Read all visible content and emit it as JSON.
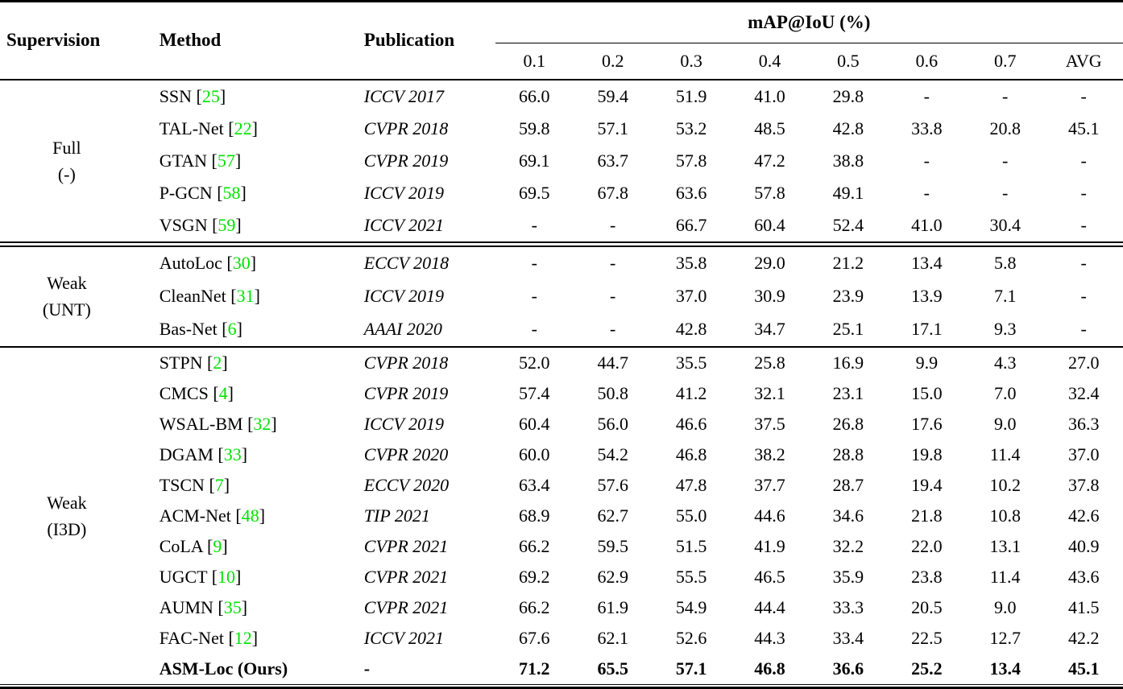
{
  "page": {
    "background": "#ffffff",
    "text_color": "#000000",
    "citation_color": "#00e000"
  },
  "table": {
    "headers": {
      "supervision": "Supervision",
      "method": "Method",
      "publication": "Publication",
      "map_group": "mAP@IoU (%)",
      "iou_cols": [
        "0.1",
        "0.2",
        "0.3",
        "0.4",
        "0.5",
        "0.6",
        "0.7",
        "AVG"
      ]
    },
    "groups": [
      {
        "supervision_lines": [
          "Full",
          "(-)"
        ],
        "separator_after": "double",
        "rows": [
          {
            "method": "SSN",
            "cite": "25",
            "publication": "ICCV 2017",
            "values": [
              "66.0",
              "59.4",
              "51.9",
              "41.0",
              "29.8",
              "-",
              "-",
              "-"
            ],
            "bold": false
          },
          {
            "method": "TAL-Net",
            "cite": "22",
            "publication": "CVPR 2018",
            "values": [
              "59.8",
              "57.1",
              "53.2",
              "48.5",
              "42.8",
              "33.8",
              "20.8",
              "45.1"
            ],
            "bold": false
          },
          {
            "method": "GTAN",
            "cite": "57",
            "publication": "CVPR 2019",
            "values": [
              "69.1",
              "63.7",
              "57.8",
              "47.2",
              "38.8",
              "-",
              "-",
              "-"
            ],
            "bold": false
          },
          {
            "method": "P-GCN",
            "cite": "58",
            "publication": "ICCV 2019",
            "values": [
              "69.5",
              "67.8",
              "63.6",
              "57.8",
              "49.1",
              "-",
              "-",
              "-"
            ],
            "bold": false
          },
          {
            "method": "VSGN",
            "cite": "59",
            "publication": "ICCV 2021",
            "values": [
              "-",
              "-",
              "66.7",
              "60.4",
              "52.4",
              "41.0",
              "30.4",
              "-"
            ],
            "bold": false
          }
        ]
      },
      {
        "supervision_lines": [
          "Weak",
          "(UNT)"
        ],
        "separator_after": "single",
        "rows": [
          {
            "method": "AutoLoc",
            "cite": "30",
            "publication": "ECCV 2018",
            "values": [
              "-",
              "-",
              "35.8",
              "29.0",
              "21.2",
              "13.4",
              "5.8",
              "-"
            ],
            "bold": false
          },
          {
            "method": "CleanNet",
            "cite": "31",
            "publication": "ICCV 2019",
            "values": [
              "-",
              "-",
              "37.0",
              "30.9",
              "23.9",
              "13.9",
              "7.1",
              "-"
            ],
            "bold": false
          },
          {
            "method": "Bas-Net",
            "cite": "6",
            "publication": "AAAI 2020",
            "values": [
              "-",
              "-",
              "42.8",
              "34.7",
              "25.1",
              "17.1",
              "9.3",
              "-"
            ],
            "bold": false
          }
        ]
      },
      {
        "supervision_lines": [
          "Weak",
          "(I3D)"
        ],
        "separator_after": null,
        "rows": [
          {
            "method": "STPN",
            "cite": "2",
            "publication": "CVPR 2018",
            "values": [
              "52.0",
              "44.7",
              "35.5",
              "25.8",
              "16.9",
              "9.9",
              "4.3",
              "27.0"
            ],
            "bold": false
          },
          {
            "method": "CMCS",
            "cite": "4",
            "publication": "CVPR 2019",
            "values": [
              "57.4",
              "50.8",
              "41.2",
              "32.1",
              "23.1",
              "15.0",
              "7.0",
              "32.4"
            ],
            "bold": false
          },
          {
            "method": "WSAL-BM",
            "cite": "32",
            "publication": "ICCV 2019",
            "values": [
              "60.4",
              "56.0",
              "46.6",
              "37.5",
              "26.8",
              "17.6",
              "9.0",
              "36.3"
            ],
            "bold": false
          },
          {
            "method": "DGAM",
            "cite": "33",
            "publication": "CVPR 2020",
            "values": [
              "60.0",
              "54.2",
              "46.8",
              "38.2",
              "28.8",
              "19.8",
              "11.4",
              "37.0"
            ],
            "bold": false
          },
          {
            "method": "TSCN",
            "cite": "7",
            "publication": "ECCV 2020",
            "values": [
              "63.4",
              "57.6",
              "47.8",
              "37.7",
              "28.7",
              "19.4",
              "10.2",
              "37.8"
            ],
            "bold": false
          },
          {
            "method": "ACM-Net",
            "cite": "48",
            "publication": "TIP 2021",
            "values": [
              "68.9",
              "62.7",
              "55.0",
              "44.6",
              "34.6",
              "21.8",
              "10.8",
              "42.6"
            ],
            "bold": false
          },
          {
            "method": "CoLA",
            "cite": "9",
            "publication": "CVPR 2021",
            "values": [
              "66.2",
              "59.5",
              "51.5",
              "41.9",
              "32.2",
              "22.0",
              "13.1",
              "40.9"
            ],
            "bold": false
          },
          {
            "method": "UGCT",
            "cite": "10",
            "publication": "CVPR 2021",
            "values": [
              "69.2",
              "62.9",
              "55.5",
              "46.5",
              "35.9",
              "23.8",
              "11.4",
              "43.6"
            ],
            "bold": false
          },
          {
            "method": "AUMN",
            "cite": "35",
            "publication": "CVPR 2021",
            "values": [
              "66.2",
              "61.9",
              "54.9",
              "44.4",
              "33.3",
              "20.5",
              "9.0",
              "41.5"
            ],
            "bold": false
          },
          {
            "method": "FAC-Net",
            "cite": "12",
            "publication": "ICCV 2021",
            "values": [
              "67.6",
              "62.1",
              "52.6",
              "44.3",
              "33.4",
              "22.5",
              "12.7",
              "42.2"
            ],
            "bold": false
          },
          {
            "method": "ASM-Loc (Ours)",
            "cite": null,
            "publication": "-",
            "values": [
              "71.2",
              "65.5",
              "57.1",
              "46.8",
              "36.6",
              "25.2",
              "13.4",
              "45.1"
            ],
            "bold": true
          }
        ]
      }
    ]
  }
}
